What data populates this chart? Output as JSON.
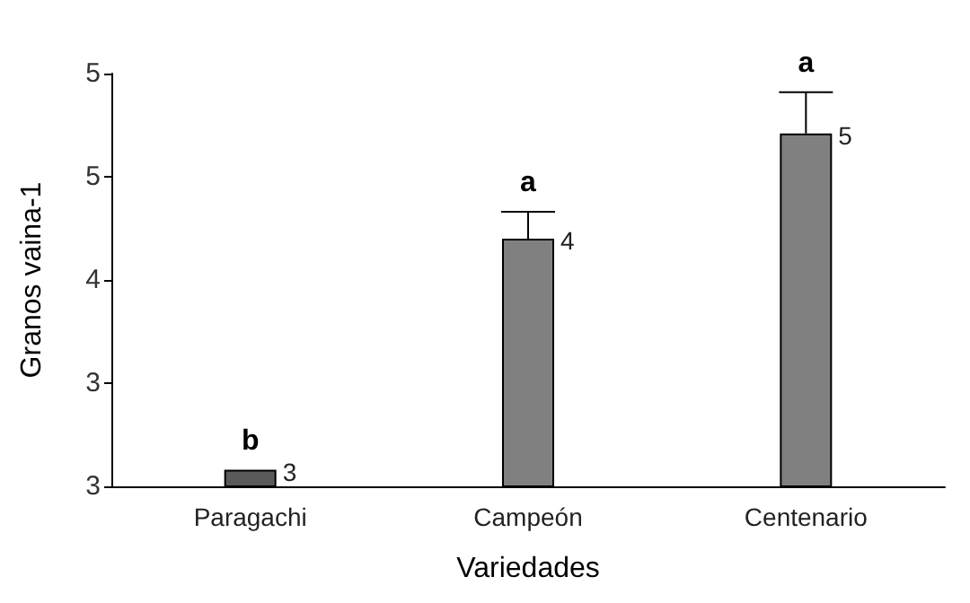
{
  "chart_data": {
    "type": "bar",
    "xlabel": "Variedades",
    "ylabel": "Granos vaina-1",
    "categories": [
      "Paragachi",
      "Campeón",
      "Centenario"
    ],
    "values": [
      3.08,
      4.2,
      4.71
    ],
    "colors": [
      "#5a5a5a",
      "#808080",
      "#808080"
    ],
    "value_labels": [
      "3",
      "4",
      "5"
    ],
    "errors": [
      null,
      [
        4.2,
        4.33
      ],
      [
        4.71,
        4.91
      ]
    ],
    "ylim": [
      3,
      5
    ],
    "yticks": [
      {
        "value": 3,
        "label": "3"
      },
      {
        "value": 3.5,
        "label": "3"
      },
      {
        "value": 4,
        "label": "4"
      },
      {
        "value": 4.5,
        "label": "5"
      },
      {
        "value": 5,
        "label": "5"
      }
    ],
    "annotations": [
      {
        "text": "b",
        "x": "Paragachi",
        "y": 3.08
      },
      {
        "text": "a",
        "x": "Campeón",
        "y": 4.33
      },
      {
        "text": "a",
        "x": "Centenario",
        "y": 4.91
      }
    ],
    "grid": false
  }
}
